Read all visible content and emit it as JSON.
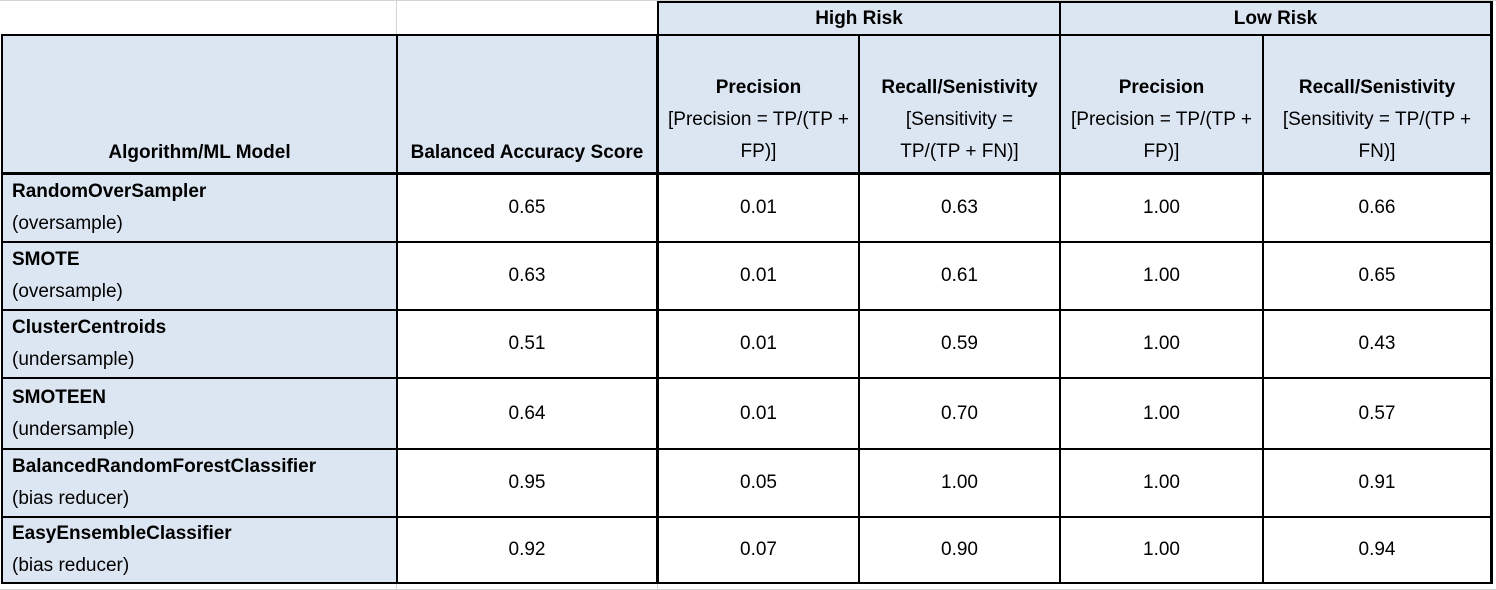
{
  "groups": {
    "high_risk": "High Risk",
    "low_risk": "Low Risk"
  },
  "headers": {
    "model": "Algorithm/ML Model",
    "bas": "Balanced Accuracy Score",
    "hr_precision_title": "Precision",
    "hr_precision_formula": "[Precision = TP/(TP + FP)]",
    "hr_recall_title": "Recall/Senistivity",
    "hr_recall_formula": "[Sensitivity = TP/(TP + FN)]",
    "lr_precision_title": "Precision",
    "lr_precision_formula": "[Precision = TP/(TP + FP)]",
    "lr_recall_title": "Recall/Senistivity",
    "lr_recall_formula": "[Sensitivity = TP/(TP + FN)]"
  },
  "rows": [
    {
      "name": "RandomOverSampler",
      "type": "(oversample)",
      "bas": "0.65",
      "hr_precision": "0.01",
      "hr_recall": "0.63",
      "lr_precision": "1.00",
      "lr_recall": "0.66"
    },
    {
      "name": "SMOTE",
      "type": "(oversample)",
      "bas": "0.63",
      "hr_precision": "0.01",
      "hr_recall": "0.61",
      "lr_precision": "1.00",
      "lr_recall": "0.65"
    },
    {
      "name": "ClusterCentroids",
      "type": "(undersample)",
      "bas": "0.51",
      "hr_precision": "0.01",
      "hr_recall": "0.59",
      "lr_precision": "1.00",
      "lr_recall": "0.43"
    },
    {
      "name": "SMOTEEN",
      "type": "(undersample)",
      "bas": "0.64",
      "hr_precision": "0.01",
      "hr_recall": "0.70",
      "lr_precision": "1.00",
      "lr_recall": "0.57"
    },
    {
      "name": "BalancedRandomForestClassifier",
      "type": "(bias reducer)",
      "bas": "0.95",
      "hr_precision": "0.05",
      "hr_recall": "1.00",
      "lr_precision": "1.00",
      "lr_recall": "0.91"
    },
    {
      "name": "EasyEnsembleClassifier",
      "type": "(bias reducer)",
      "bas": "0.92",
      "hr_precision": "0.07",
      "hr_recall": "0.90",
      "lr_precision": "1.00",
      "lr_recall": "0.94"
    }
  ],
  "colors": {
    "header_fill": "#dce6f2",
    "border": "#000000",
    "gridline": "#d4d4d4"
  }
}
